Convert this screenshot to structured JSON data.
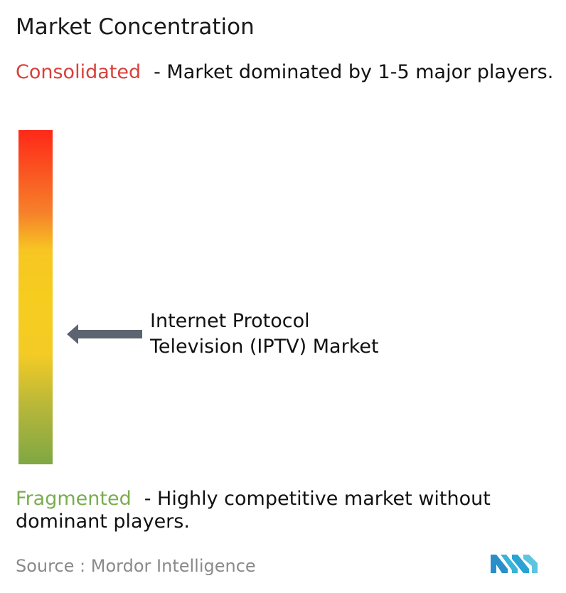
{
  "title": "Market Concentration",
  "consolidated": {
    "label": "Consolidated",
    "description": "- Market dominated by 1-5 major players.",
    "color": "#d9403a"
  },
  "fragmented": {
    "label": "Fragmented",
    "description": "- Highly competitive market without dominant players.",
    "color": "#79ad4e"
  },
  "source": "Source :  Mordor Intelligence",
  "logo_icon": "mordor-intelligence-logo",
  "chart_data": {
    "type": "gauge",
    "scale_top": "Consolidated",
    "scale_bottom": "Fragmented",
    "gradient_colors": [
      "#fe2818",
      "#f6822a",
      "#f7c622",
      "#f4cb25",
      "#7fa743"
    ],
    "marker": {
      "label_line1": "Internet Protocol",
      "label_line2": "Television (IPTV) Market",
      "level_from_bottom": 0.39
    }
  }
}
